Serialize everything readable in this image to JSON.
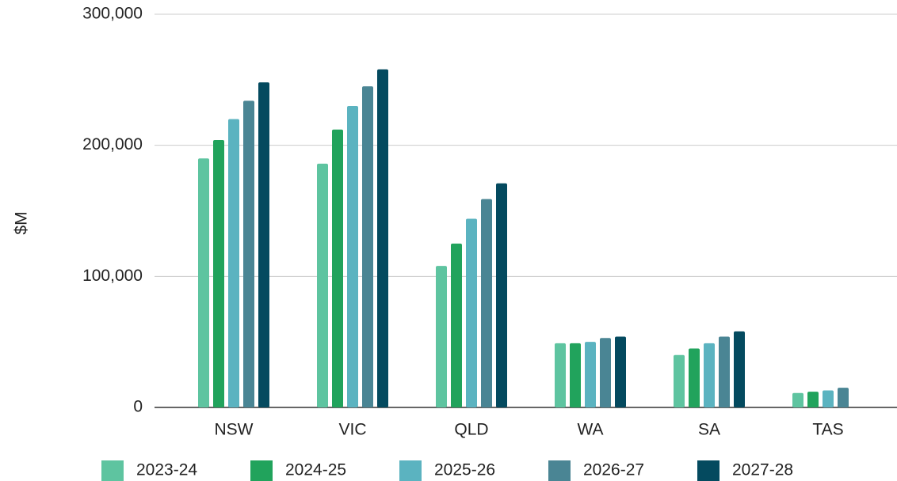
{
  "chart_data": {
    "type": "bar",
    "y_label": "$M",
    "categories": [
      "NSW",
      "VIC",
      "QLD",
      "WA",
      "SA",
      "TAS"
    ],
    "series": [
      {
        "name": "2023-24",
        "color": "#5ec4a0",
        "values": [
          190000,
          186000,
          108000,
          49000,
          40000,
          11000
        ]
      },
      {
        "name": "2024-25",
        "color": "#21a35c",
        "values": [
          204000,
          212000,
          125000,
          49000,
          45000,
          12000
        ]
      },
      {
        "name": "2025-26",
        "color": "#5bb3c0",
        "values": [
          220000,
          230000,
          144000,
          50000,
          49000,
          13000
        ]
      },
      {
        "name": "2026-27",
        "color": "#4a8594",
        "values": [
          234000,
          245000,
          159000,
          53000,
          54000,
          15000
        ]
      },
      {
        "name": "2027-28",
        "color": "#044a5f",
        "values": [
          248000,
          258000,
          171000,
          54000,
          58000,
          null
        ]
      }
    ],
    "ylim": [
      0,
      300000
    ],
    "yticks": [
      0,
      {
        "value": 100000,
        "label": "100,000"
      },
      {
        "value": 200000,
        "label": "200,000"
      },
      {
        "value": 300000,
        "label": "300,000"
      }
    ],
    "grid": true,
    "legend": "bottom"
  }
}
